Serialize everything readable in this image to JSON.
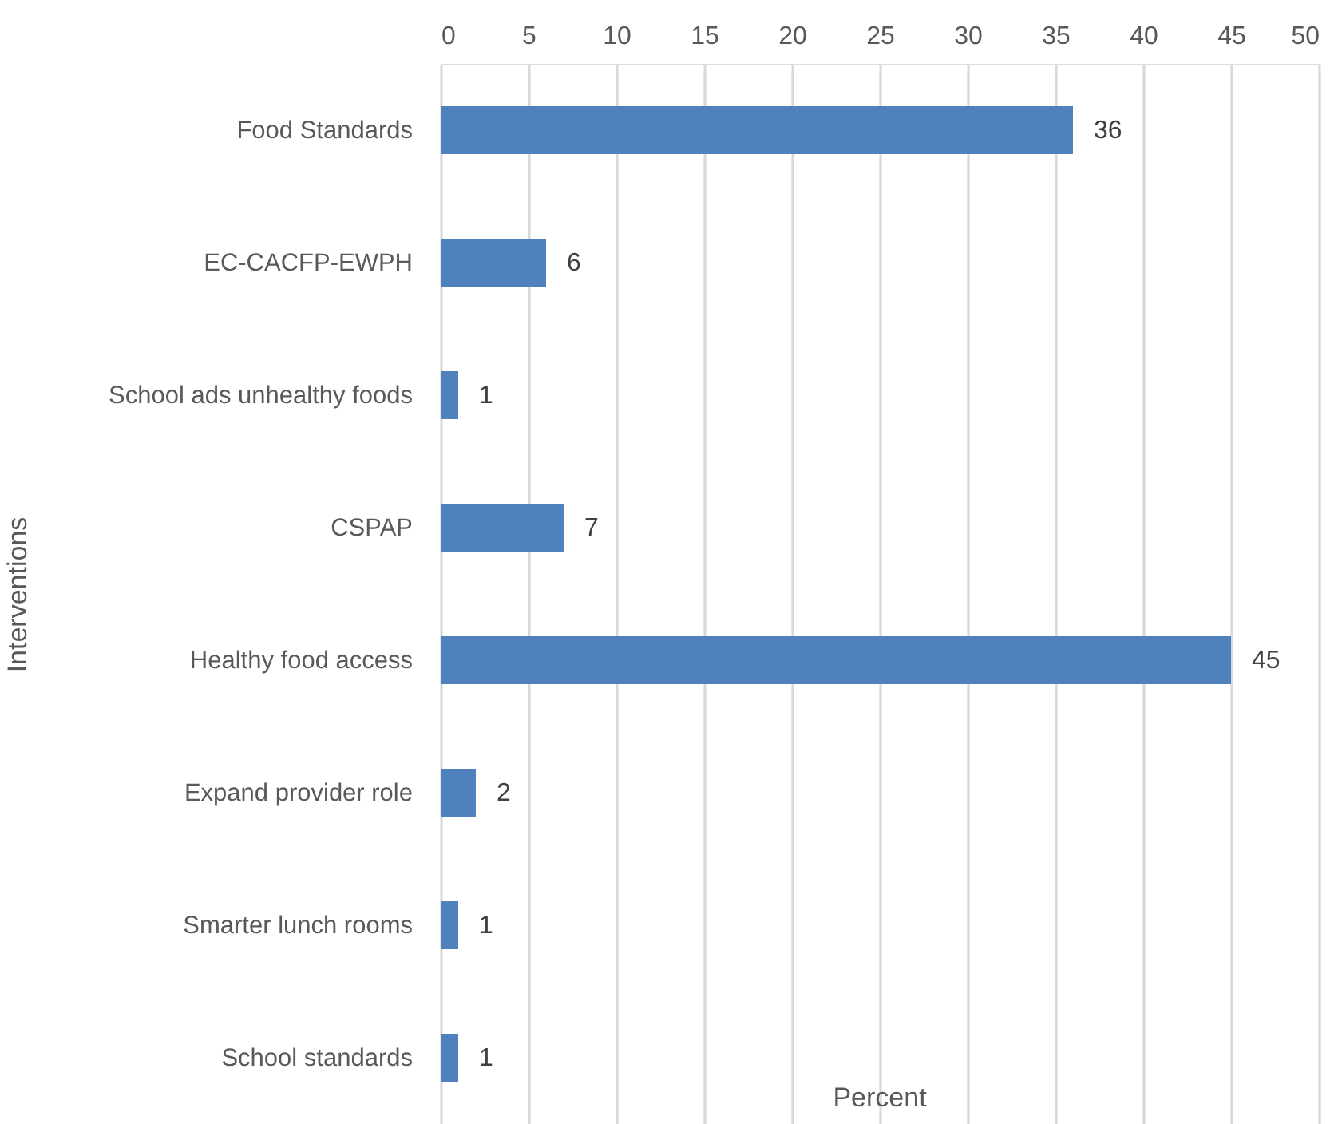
{
  "chart_data": {
    "type": "bar",
    "orientation": "horizontal",
    "xlabel": "Percent",
    "ylabel": "Interventions",
    "categories": [
      "Food Standards",
      "EC-CACFP-EWPH",
      "School ads unhealthy foods",
      "CSPAP",
      "Healthy food access",
      "Expand provider role",
      "Smarter lunch rooms",
      "School standards"
    ],
    "values": [
      36,
      6,
      1,
      7,
      45,
      2,
      1,
      1
    ],
    "color": "#4f81bd",
    "xlim": [
      0,
      50
    ],
    "xticks": [
      0,
      5,
      10,
      15,
      20,
      25,
      30,
      35,
      40,
      45,
      50
    ],
    "grid": "x",
    "data_labels": true
  }
}
